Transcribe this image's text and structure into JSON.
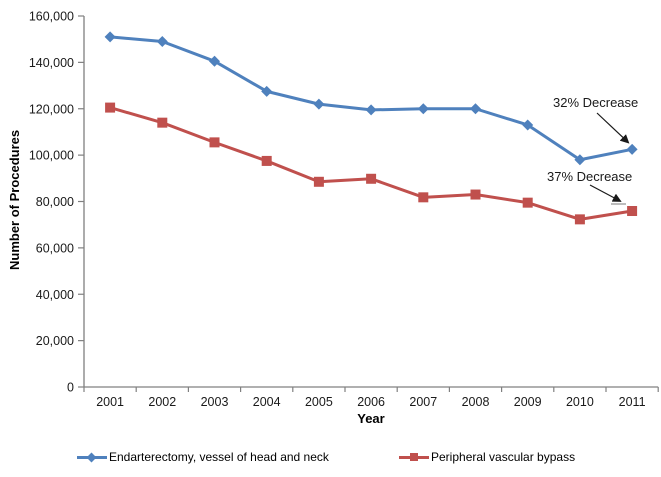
{
  "chart_data": {
    "type": "line",
    "title": "",
    "xlabel": "Year",
    "ylabel": "Number of Procedures",
    "categories": [
      2001,
      2002,
      2003,
      2004,
      2005,
      2006,
      2007,
      2008,
      2009,
      2010,
      2011
    ],
    "series": [
      {
        "name": "Endarterectomy, vessel of head and neck",
        "color": "#4F81BD",
        "marker": "diamond",
        "values": [
          151000,
          149000,
          140500,
          127500,
          122000,
          119500,
          120000,
          120000,
          113000,
          98000,
          102500
        ]
      },
      {
        "name": "Peripheral vascular bypass",
        "color": "#C0504D",
        "marker": "square",
        "values": [
          120500,
          114000,
          105500,
          97500,
          88500,
          89800,
          81800,
          83000,
          79500,
          72300,
          75900
        ]
      }
    ],
    "ylim": [
      0,
      160000
    ],
    "ytick_step": 20000,
    "grid": false,
    "legend_position": "bottom",
    "axis_color": "#808080",
    "tick_label_color": "#1a1a1a",
    "annotations": [
      {
        "text": "32% Decrease",
        "series": 0,
        "category": 2011
      },
      {
        "text": "37% Decrease",
        "series": 1,
        "category": 2011
      }
    ]
  }
}
